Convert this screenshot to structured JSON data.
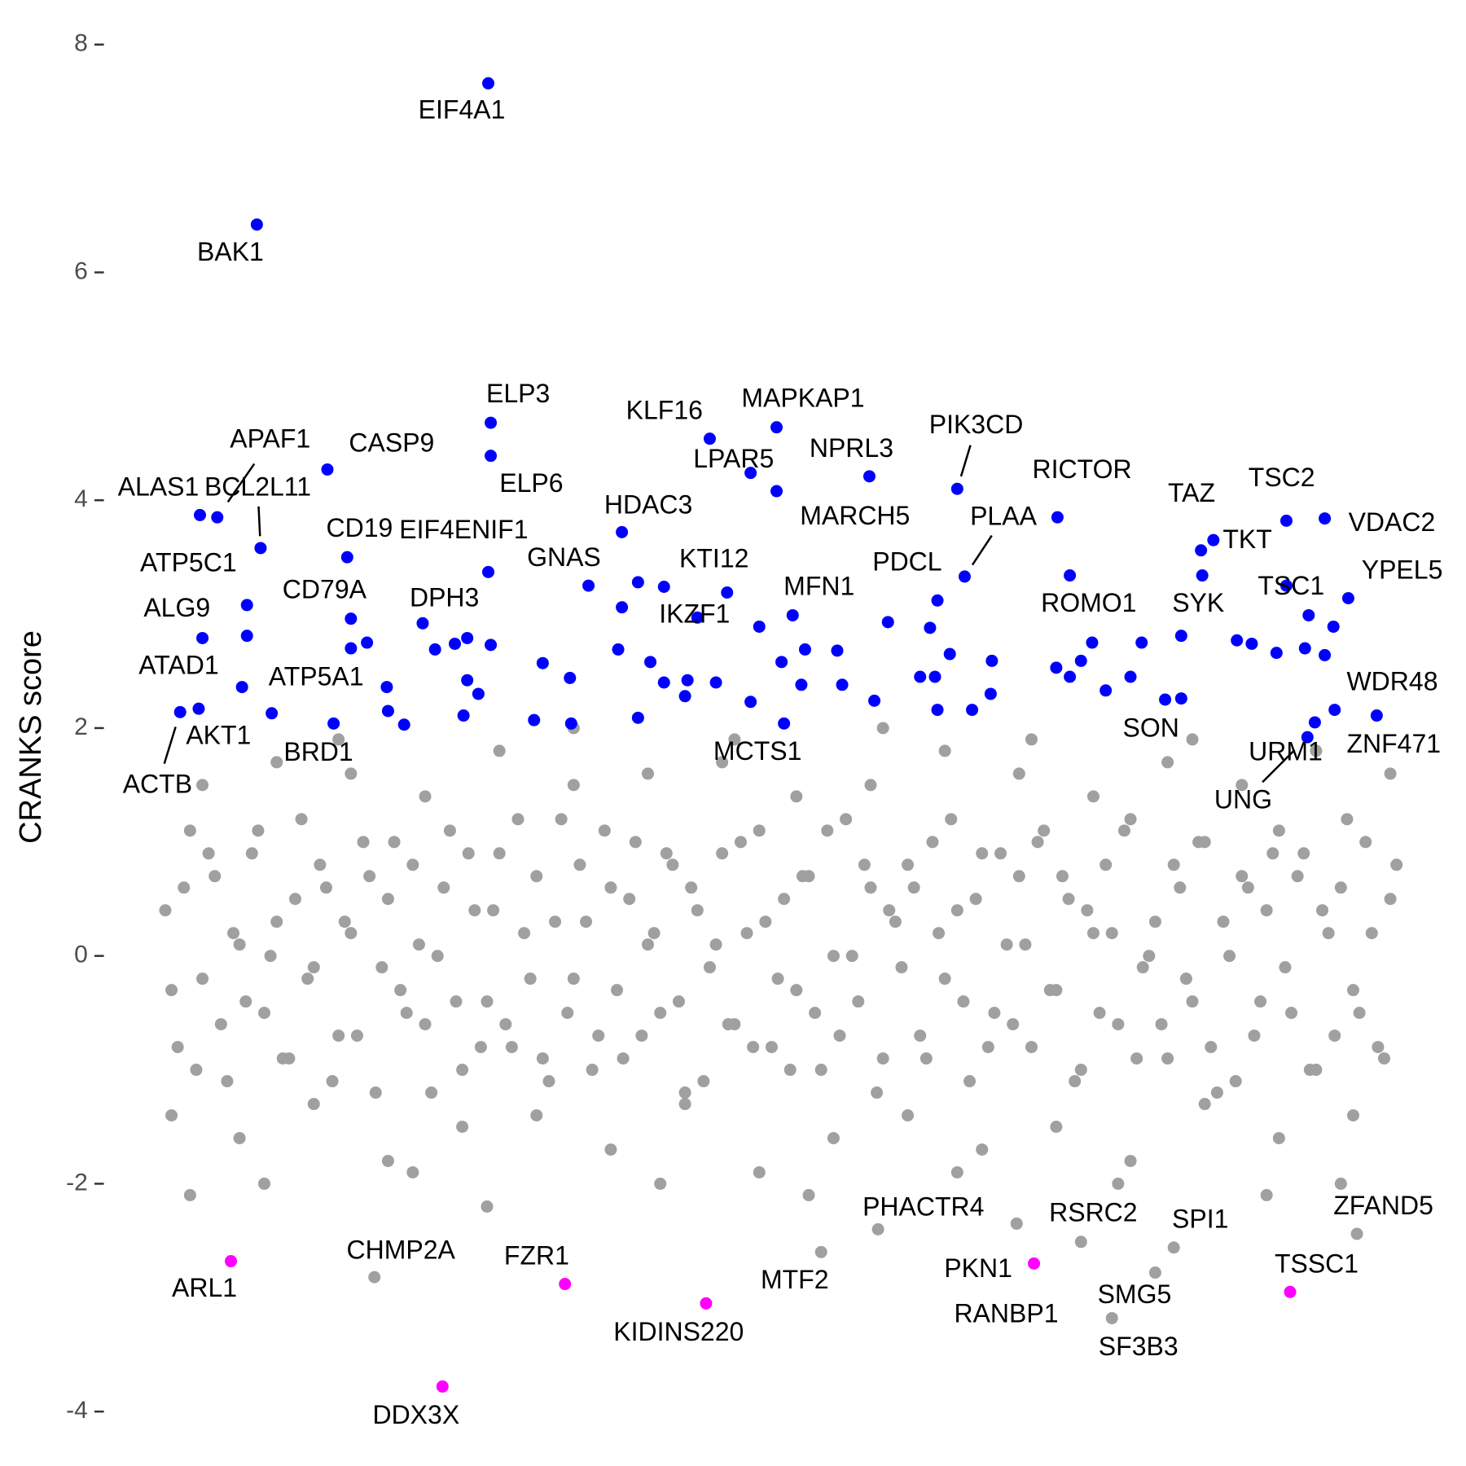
{
  "chart_data": {
    "type": "scatter",
    "y_label": "CRANKS score",
    "xlim": [
      0,
      100
    ],
    "ylim": [
      -4.2,
      8.3
    ],
    "yticks": [
      -4,
      -2,
      0,
      2,
      4,
      6,
      8
    ],
    "series": [
      {
        "color": "#a0a0a0",
        "x": [
          0,
          1,
          2,
          3,
          4,
          5,
          6,
          7,
          8,
          9,
          10,
          11,
          12,
          13,
          14,
          15,
          16,
          17,
          18,
          19,
          20,
          21,
          22,
          23,
          24,
          25,
          26,
          27,
          28,
          29,
          30,
          31,
          32,
          33,
          34,
          35,
          36,
          37,
          38,
          39,
          40,
          41,
          42,
          43,
          44,
          45,
          46,
          47,
          48,
          49,
          50,
          51,
          52,
          53,
          54,
          55,
          56,
          57,
          58,
          59,
          60,
          61,
          62,
          63,
          64,
          65,
          66,
          67,
          68,
          69,
          70,
          71,
          72,
          73,
          74,
          75,
          76,
          77,
          78,
          79,
          80,
          81,
          82,
          83,
          84,
          85,
          86,
          87,
          88,
          89,
          90,
          91,
          92,
          93,
          94,
          95,
          96,
          97,
          98,
          99,
          0.5,
          1.5,
          2.5,
          3.5,
          4.5,
          5.5,
          6.5,
          7.5,
          8.5,
          9.5,
          10.5,
          11.5,
          12.5,
          13.5,
          14.5,
          15.5,
          16.5,
          17.5,
          18.5,
          19.5,
          20.5,
          21.5,
          22.5,
          23.5,
          24.5,
          25.5,
          26.5,
          27.5,
          28.5,
          29.5,
          30.5,
          31.5,
          32.5,
          33.5,
          34.5,
          35.5,
          36.5,
          37.5,
          38.5,
          39.5,
          40.5,
          41.5,
          42.5,
          43.5,
          44.5,
          45.5,
          46.5,
          47.5,
          48.5,
          49.5,
          50.5,
          51.5,
          52.5,
          53.5,
          54.5,
          55.5,
          56.5,
          57.5,
          58.5,
          59.5,
          60.5,
          61.5,
          62.5,
          63.5,
          64.5,
          65.5,
          66.5,
          67.5,
          68.5,
          69.5,
          70.5,
          71.5,
          72.5,
          73.5,
          74.5,
          75.5,
          76.5,
          77.5,
          78.5,
          79.5,
          80.5,
          81.5,
          82.5,
          83.5,
          84.5,
          85.5,
          86.5,
          87.5,
          88.5,
          89.5,
          90.5,
          91.5,
          92.5,
          93.5,
          94.5,
          95.5,
          96.5,
          97.5,
          98.5,
          99.5,
          0.5,
          3,
          6,
          9,
          12,
          15,
          18,
          21,
          24,
          27,
          30,
          33,
          36,
          39,
          42,
          45,
          48,
          51,
          54,
          57,
          60,
          63,
          66,
          69,
          72,
          75,
          78,
          81,
          84,
          87,
          90,
          93,
          96,
          99,
          2,
          8,
          14,
          20,
          26,
          33,
          40,
          46,
          52,
          58,
          64,
          70,
          77,
          83,
          89,
          95
        ],
        "values": [
          0.4,
          -0.8,
          1.1,
          -0.2,
          0.7,
          -1.1,
          0.1,
          0.9,
          -0.5,
          0.3,
          -0.9,
          1.2,
          -0.1,
          0.6,
          -0.7,
          0.2,
          1.0,
          -1.2,
          0.5,
          -0.3,
          0.8,
          -0.6,
          0.0,
          1.1,
          -1.0,
          0.4,
          -0.4,
          0.9,
          -0.8,
          0.2,
          0.7,
          -1.1,
          1.2,
          -0.2,
          0.3,
          -0.7,
          0.6,
          -0.9,
          1.0,
          0.1,
          -0.5,
          0.8,
          -1.2,
          0.4,
          -0.1,
          0.9,
          -0.6,
          0.2,
          1.1,
          -0.8,
          0.5,
          -0.3,
          0.7,
          -1.0,
          0.0,
          1.2,
          -0.4,
          0.6,
          -0.9,
          0.3,
          0.8,
          -0.7,
          1.0,
          -0.2,
          0.4,
          -1.1,
          0.9,
          -0.5,
          0.1,
          0.7,
          -0.8,
          1.1,
          -0.3,
          0.5,
          -1.0,
          0.2,
          0.8,
          -0.6,
          1.2,
          -0.1,
          0.3,
          -0.9,
          0.6,
          -0.4,
          1.0,
          -1.2,
          0.0,
          0.7,
          -0.7,
          0.4,
          1.1,
          -0.5,
          0.9,
          -1.0,
          0.2,
          0.6,
          -0.3,
          1.0,
          -0.8,
          0.5,
          -0.3,
          0.6,
          -1.0,
          0.9,
          -0.6,
          0.2,
          -0.4,
          1.1,
          0.0,
          -0.9,
          0.5,
          -0.2,
          0.8,
          -1.1,
          0.3,
          -0.7,
          0.7,
          -0.1,
          1.0,
          -0.5,
          0.1,
          -1.2,
          0.6,
          -0.4,
          0.9,
          -0.8,
          0.4,
          -0.6,
          1.2,
          -0.2,
          -0.9,
          0.3,
          -0.5,
          0.8,
          -1.0,
          1.1,
          -0.3,
          0.5,
          -0.7,
          0.2,
          0.9,
          -0.4,
          0.6,
          -1.1,
          0.1,
          -0.6,
          1.0,
          -0.8,
          0.3,
          -0.2,
          -1.0,
          0.7,
          -0.5,
          1.1,
          -0.7,
          0.0,
          0.8,
          -1.2,
          0.4,
          -0.1,
          0.6,
          -0.9,
          0.2,
          1.2,
          -0.4,
          0.5,
          -0.8,
          0.9,
          -0.6,
          0.1,
          1.0,
          -0.3,
          0.7,
          -1.1,
          0.4,
          -0.5,
          0.2,
          1.1,
          -0.9,
          0.0,
          -0.6,
          0.8,
          -0.2,
          1.0,
          -0.8,
          0.3,
          -1.1,
          0.6,
          -0.4,
          0.9,
          -0.1,
          0.7,
          -1.0,
          0.4,
          -0.7,
          1.2,
          -0.5,
          0.2,
          -0.9,
          0.8,
          -1.4,
          1.5,
          -1.6,
          1.7,
          -1.3,
          1.6,
          -1.8,
          1.4,
          -1.5,
          1.8,
          -1.4,
          1.5,
          -1.7,
          1.6,
          -1.3,
          1.7,
          -1.9,
          1.4,
          -1.6,
          1.5,
          -1.4,
          1.8,
          -1.7,
          1.6,
          -1.5,
          1.4,
          -1.8,
          1.7,
          -1.3,
          1.5,
          -1.6,
          1.8,
          -1.4,
          1.6,
          -2.1,
          -2.0,
          1.9,
          -1.9,
          -2.2,
          2.0,
          -2.0,
          1.9,
          -2.1,
          2.0,
          -1.9,
          1.9,
          -2.0,
          1.9,
          -2.1,
          -2.0
        ]
      },
      {
        "color": "#0000ff",
        "x": [
          6.6,
          15.0,
          16.3,
          17.9,
          18.0,
          19.3,
          21.8,
          23.4,
          24.4,
          24.4,
          25.3,
          24.1,
          26.3,
          29.8,
          30.5,
          32.7,
          32.8,
          36.6,
          36.9,
          38.2,
          38.2,
          39.2,
          40.3,
          42.2,
          42.0,
          44.5,
          45.4,
          47.3,
          48.0,
          49.8,
          51.4,
          51.7,
          54.3,
          54.7,
          57.3,
          58.4,
          61.0,
          61.8,
          62.2,
          62.4,
          63.4,
          65.2,
          66.8,
          66.7,
          72.0,
          73.1,
          74.0,
          74.9,
          76.0,
          78.0,
          78.9,
          82.1,
          83.8,
          86.6,
          87.8,
          89.8,
          92.1,
          92.4,
          93.7,
          94.4
        ],
        "values": [
          2.81,
          2.7,
          2.75,
          2.36,
          2.15,
          2.03,
          2.69,
          2.74,
          2.79,
          2.42,
          2.3,
          2.11,
          2.73,
          2.07,
          2.57,
          2.44,
          2.04,
          2.69,
          3.06,
          3.28,
          2.09,
          2.58,
          2.4,
          2.42,
          2.28,
          2.4,
          3.19,
          2.23,
          2.89,
          2.58,
          2.38,
          2.69,
          2.68,
          2.38,
          2.24,
          2.93,
          2.45,
          2.88,
          2.45,
          2.16,
          2.65,
          2.16,
          2.59,
          2.3,
          2.53,
          2.45,
          2.59,
          2.75,
          2.33,
          2.45,
          2.75,
          2.26,
          3.34,
          2.77,
          2.74,
          2.66,
          2.7,
          2.99,
          2.64,
          2.89
        ]
      },
      {
        "color": "#0000ff",
        "x": [
          26.1,
          7.4,
          26.3,
          26.3,
          44.0,
          49.4,
          47.3,
          49.4,
          56.9,
          64.0,
          72.1,
          13.1,
          4.2,
          2.8,
          7.7,
          6.6,
          14.7,
          26.1,
          36.9,
          34.2,
          40.3,
          83.7,
          90.6,
          93.7,
          84.7,
          64.6,
          62.4,
          95.6,
          90.6,
          73.1,
          82.1,
          50.7,
          43.0,
          20.8,
          15.0,
          3.0,
          6.2,
          1.2,
          8.6,
          94.5,
          80.8,
          2.7,
          13.6,
          50.0,
          97.9,
          92.9,
          92.3
        ],
        "values": [
          7.66,
          6.42,
          4.68,
          4.39,
          4.54,
          4.64,
          4.24,
          4.08,
          4.21,
          4.1,
          3.85,
          4.27,
          3.85,
          3.87,
          3.58,
          3.08,
          3.5,
          3.37,
          3.72,
          3.25,
          3.24,
          3.56,
          3.82,
          3.84,
          3.65,
          3.33,
          3.12,
          3.14,
          3.25,
          3.34,
          2.81,
          2.99,
          2.97,
          2.92,
          2.96,
          2.79,
          2.36,
          2.14,
          2.13,
          2.16,
          2.25,
          2.17,
          2.04,
          2.04,
          2.11,
          2.05,
          1.92
        ],
        "labels": [
          "EIF4A1",
          "BAK1",
          "ELP3",
          "ELP6",
          "KLF16",
          "MAPKAP1",
          "LPAR5",
          "MARCH5",
          "NPRL3",
          "PIK3CD",
          "RICTOR",
          "CASP9",
          "APAF1",
          "ALAS1",
          "BCL2L11",
          "ATP5C1",
          "CD19",
          "EIF4ENIF1",
          "HDAC3",
          "GNAS",
          "KTI12",
          "TAZ",
          "TSC2",
          "VDAC2",
          "TKT",
          "PLAA",
          "PDCL",
          "YPEL5",
          "TSC1",
          "ROMO1",
          "SYK",
          "MFN1",
          "IKZF1",
          "DPH3",
          "CD79A",
          "ALG9",
          "ATAD1",
          "ACTB",
          "ATP5A1",
          "WDR48",
          "SON",
          "AKT1",
          "BRD1",
          "MCTS1",
          "ZNF471",
          "URM1",
          "UNG"
        ]
      },
      {
        "color": "#ff00ff",
        "x": [
          5.3,
          32.3,
          43.7,
          22.4,
          70.2,
          90.9
        ],
        "values": [
          -2.68,
          -2.88,
          -3.05,
          -3.78,
          -2.7,
          -2.95
        ],
        "labels": [
          "ARL1",
          "FZR1",
          "KIDINS220",
          "DDX3X",
          "PKN1",
          "TSSC1"
        ]
      },
      {
        "color": "#a0a0a0",
        "x": [
          16.9,
          53.0,
          57.6,
          74.0,
          68.8,
          80.0,
          76.5,
          81.5,
          96.3
        ],
        "values": [
          -2.82,
          -2.6,
          -2.4,
          -2.51,
          -2.35,
          -2.78,
          -3.18,
          -2.56,
          -2.44
        ],
        "labels": [
          "CHMP2A",
          "MTF2",
          "PHACTR4",
          "RSRC2",
          "RANBP1",
          "SMG5",
          "SF3B3",
          "SPI1",
          "ZFAND5"
        ]
      }
    ]
  }
}
